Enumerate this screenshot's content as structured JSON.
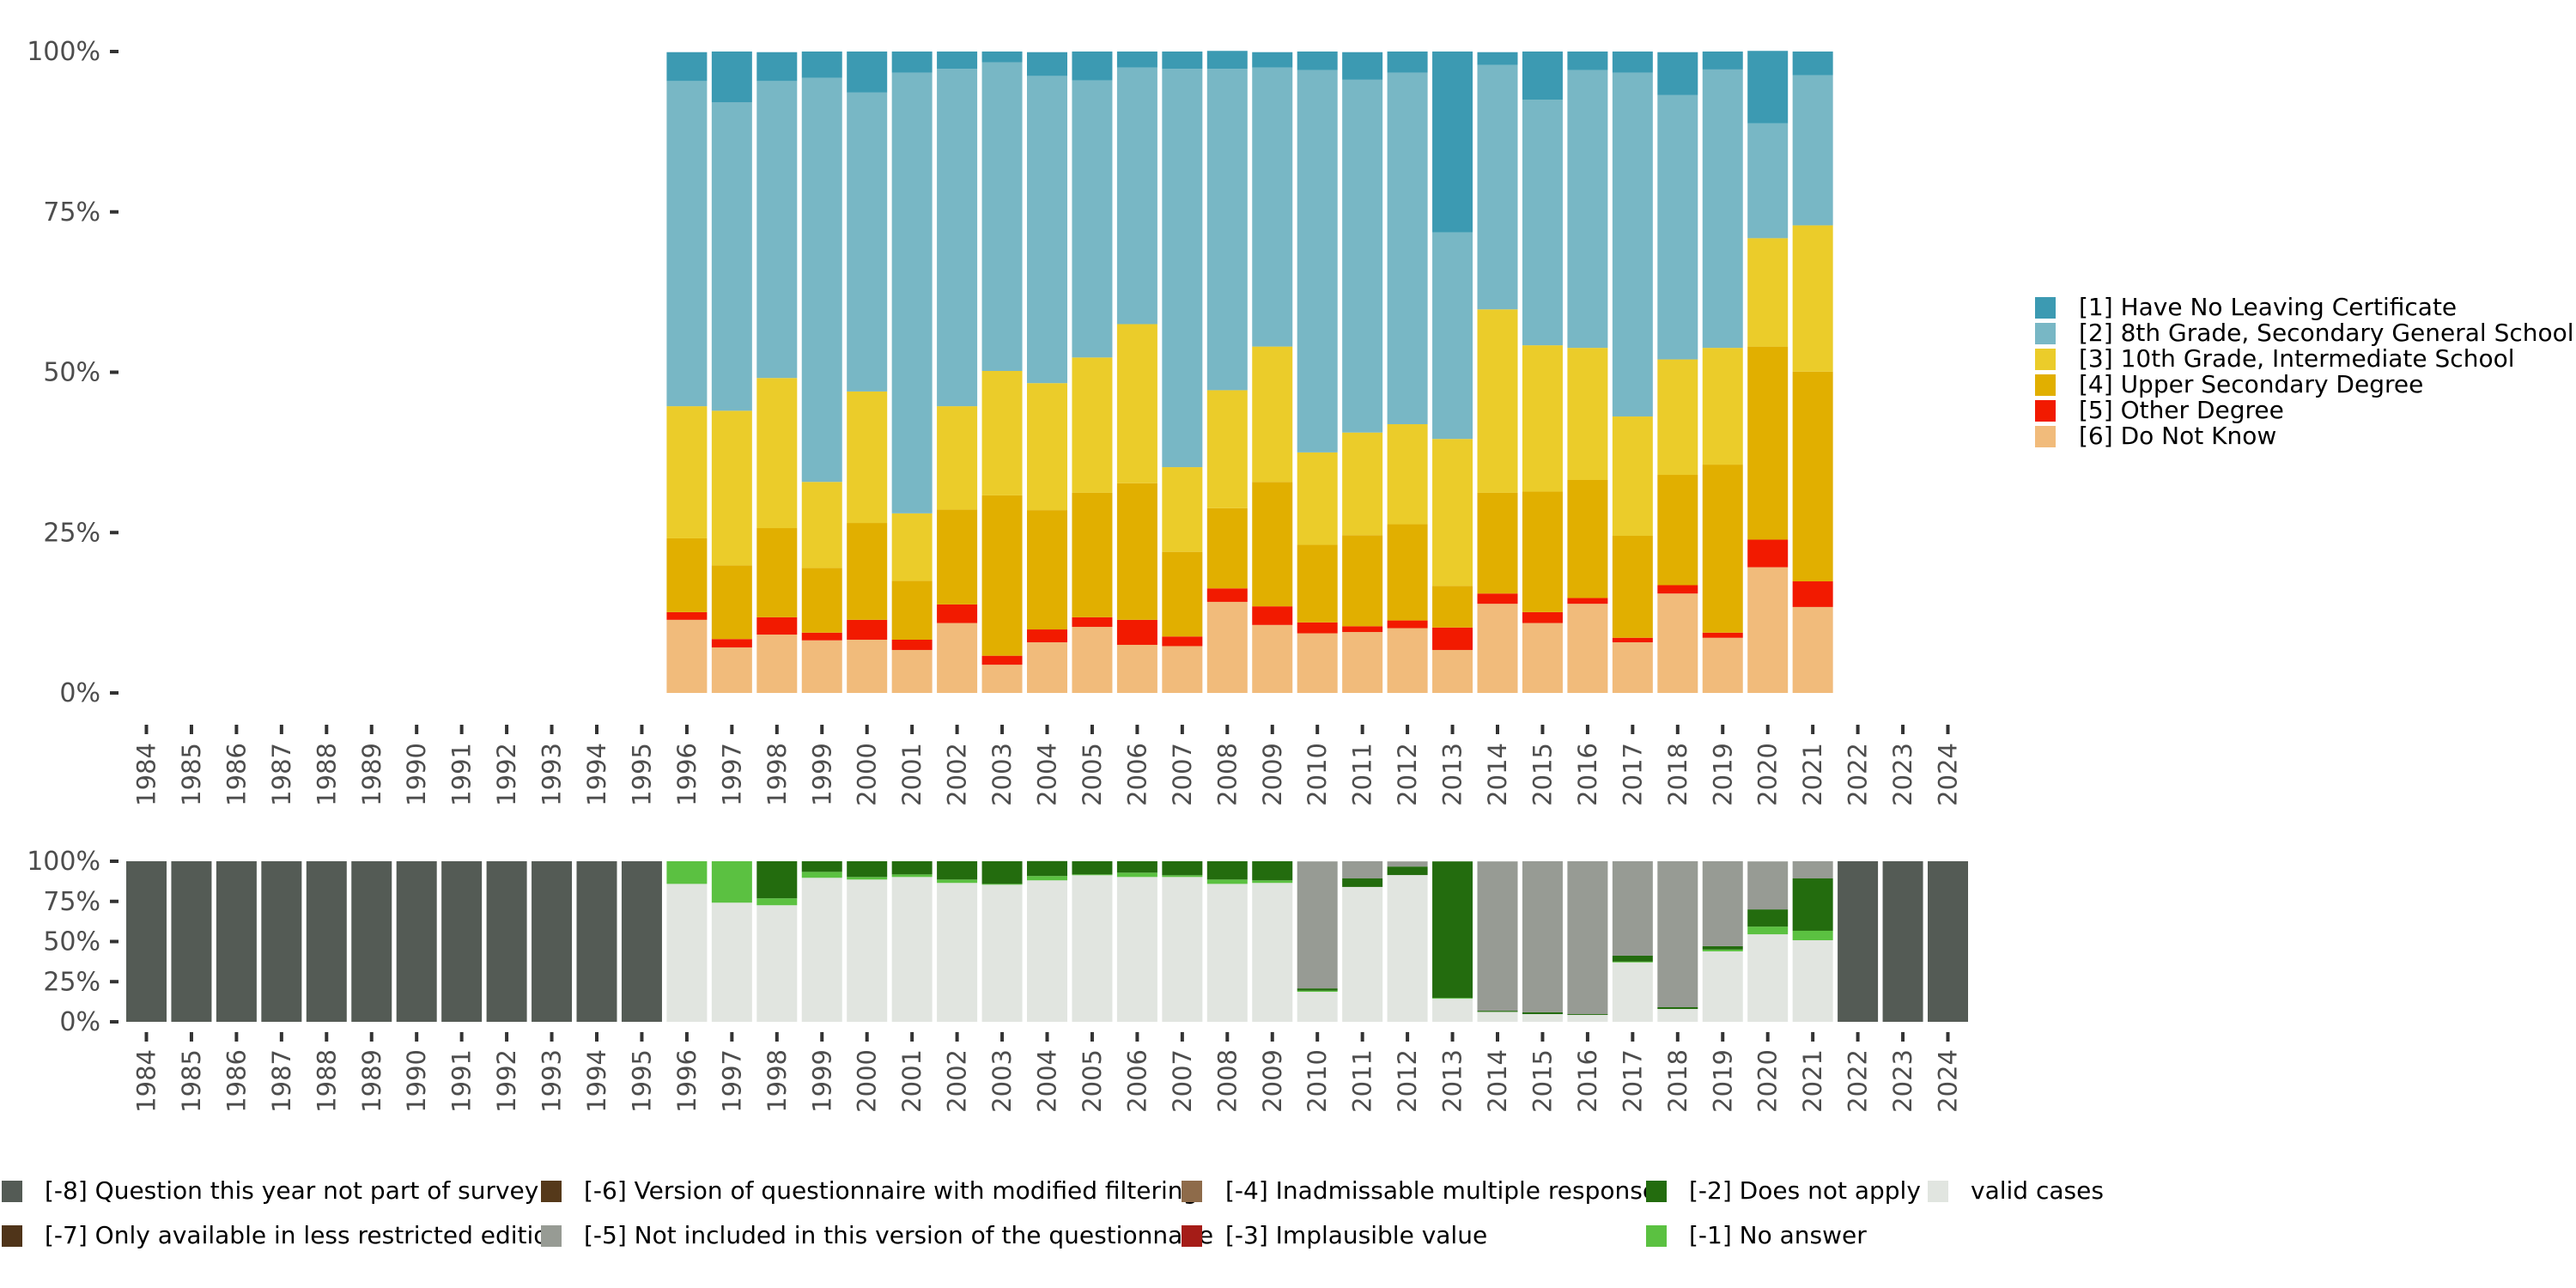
{
  "chart_data": [
    {
      "type": "bar",
      "stacked": true,
      "percent": true,
      "title": "",
      "xlabel": "",
      "ylabel": "",
      "ylim": [
        0,
        100
      ],
      "yticks": [
        "0%",
        "25%",
        "50%",
        "75%",
        "100%"
      ],
      "yticks_values": [
        0,
        25,
        50,
        75,
        100
      ],
      "categories": [
        "1984",
        "1985",
        "1986",
        "1987",
        "1988",
        "1989",
        "1990",
        "1991",
        "1992",
        "1993",
        "1994",
        "1995",
        "1996",
        "1997",
        "1998",
        "1999",
        "2000",
        "2001",
        "2002",
        "2003",
        "2004",
        "2005",
        "2006",
        "2007",
        "2008",
        "2009",
        "2010",
        "2011",
        "2012",
        "2013",
        "2014",
        "2015",
        "2016",
        "2017",
        "2018",
        "2019",
        "2020",
        "2021",
        "2022",
        "2023",
        "2024"
      ],
      "legend_position": "right",
      "grid": false,
      "series": [
        {
          "name": "[1] Have No Leaving Certificate",
          "color": "#3C9AB2",
          "values": [
            null,
            null,
            null,
            null,
            null,
            null,
            null,
            null,
            null,
            null,
            null,
            null,
            4.5,
            7.9,
            4.5,
            4.1,
            6.4,
            3.3,
            2.7,
            1.7,
            3.7,
            4.5,
            2.5,
            2.7,
            2.8,
            2.4,
            2.9,
            4.3,
            3.3,
            28.2,
            2.0,
            7.5,
            2.9,
            3.3,
            6.7,
            2.8,
            11.3,
            3.7,
            null,
            null,
            null
          ]
        },
        {
          "name": "[2] 8th Grade, Secondary General School",
          "color": "#78B7C5",
          "values": [
            null,
            null,
            null,
            null,
            null,
            null,
            null,
            null,
            null,
            null,
            null,
            null,
            50.7,
            48.1,
            46.3,
            63.0,
            46.6,
            68.7,
            52.6,
            48.1,
            47.9,
            43.2,
            40.0,
            62.1,
            50.1,
            43.5,
            59.6,
            55.0,
            54.8,
            32.2,
            38.1,
            38.3,
            43.3,
            53.6,
            41.2,
            43.4,
            17.9,
            23.4,
            null,
            null,
            null
          ]
        },
        {
          "name": "[3] 10th Grade, Intermediate School",
          "color": "#EBCC2A",
          "values": [
            null,
            null,
            null,
            null,
            null,
            null,
            null,
            null,
            null,
            null,
            null,
            null,
            20.6,
            24.1,
            23.4,
            13.4,
            20.5,
            10.5,
            16.1,
            19.4,
            19.8,
            21.1,
            24.8,
            13.2,
            18.4,
            21.1,
            14.4,
            16.0,
            15.6,
            22.9,
            28.6,
            22.8,
            20.6,
            18.6,
            18.0,
            18.2,
            16.9,
            22.8,
            null,
            null,
            null
          ]
        },
        {
          "name": "[4] Upper Secondary Degree",
          "color": "#E1AF00",
          "values": [
            null,
            null,
            null,
            null,
            null,
            null,
            null,
            null,
            null,
            null,
            null,
            null,
            11.5,
            11.5,
            13.9,
            10.1,
            15.1,
            9.2,
            14.8,
            25.0,
            18.6,
            19.4,
            21.3,
            13.2,
            12.5,
            19.4,
            12.1,
            14.2,
            15.0,
            6.5,
            15.7,
            18.8,
            18.4,
            15.9,
            17.2,
            26.2,
            30.1,
            32.7,
            null,
            null,
            null
          ]
        },
        {
          "name": "[5] Other Degree",
          "color": "#F21A00",
          "values": [
            null,
            null,
            null,
            null,
            null,
            null,
            null,
            null,
            null,
            null,
            null,
            null,
            1.2,
            1.3,
            2.7,
            1.2,
            3.1,
            1.6,
            2.9,
            1.4,
            2.0,
            1.5,
            3.9,
            1.5,
            2.1,
            2.9,
            1.7,
            0.9,
            1.2,
            3.5,
            1.6,
            1.7,
            0.9,
            0.7,
            1.3,
            0.8,
            4.3,
            4.0,
            null,
            null,
            null
          ]
        },
        {
          "name": "[6] Do Not Know",
          "color": "#F1BB7B",
          "values": [
            null,
            null,
            null,
            null,
            null,
            null,
            null,
            null,
            null,
            null,
            null,
            null,
            11.4,
            7.1,
            9.1,
            8.2,
            8.3,
            6.7,
            10.9,
            4.4,
            7.9,
            10.3,
            7.5,
            7.3,
            14.2,
            10.6,
            9.3,
            9.5,
            10.1,
            6.7,
            13.9,
            10.9,
            13.9,
            7.9,
            15.5,
            8.6,
            19.6,
            13.4,
            null,
            null,
            null
          ]
        }
      ]
    },
    {
      "type": "bar",
      "stacked": true,
      "percent": true,
      "title": "",
      "xlabel": "",
      "ylabel": "",
      "ylim": [
        0,
        100
      ],
      "yticks": [
        "0%",
        "25%",
        "50%",
        "75%",
        "100%"
      ],
      "yticks_values": [
        0,
        25,
        50,
        75,
        100
      ],
      "categories": [
        "1984",
        "1985",
        "1986",
        "1987",
        "1988",
        "1989",
        "1990",
        "1991",
        "1992",
        "1993",
        "1994",
        "1995",
        "1996",
        "1997",
        "1998",
        "1999",
        "2000",
        "2001",
        "2002",
        "2003",
        "2004",
        "2005",
        "2006",
        "2007",
        "2008",
        "2009",
        "2010",
        "2011",
        "2012",
        "2013",
        "2014",
        "2015",
        "2016",
        "2017",
        "2018",
        "2019",
        "2020",
        "2021",
        "2022",
        "2023",
        "2024"
      ],
      "legend_position": "bottom",
      "grid": false,
      "series": [
        {
          "name": "[-8] Question this year not part of survey",
          "color": "#545B55",
          "values": [
            100,
            100,
            100,
            100,
            100,
            100,
            100,
            100,
            100,
            100,
            100,
            100,
            0,
            0,
            0,
            0,
            0,
            0,
            0,
            0,
            0,
            0,
            0,
            0,
            0,
            0,
            0,
            0,
            0,
            0,
            0,
            0,
            0,
            0,
            0,
            0,
            0,
            0,
            100,
            100,
            100
          ]
        },
        {
          "name": "[-7] Only available in less restricted edition",
          "color": "#4F3419",
          "values": [
            0,
            0,
            0,
            0,
            0,
            0,
            0,
            0,
            0,
            0,
            0,
            0,
            0,
            0,
            0,
            0,
            0,
            0,
            0,
            0,
            0,
            0,
            0,
            0,
            0,
            0,
            0,
            0,
            0,
            0,
            0,
            0,
            0,
            0,
            0,
            0,
            0,
            0,
            0,
            0,
            0
          ]
        },
        {
          "name": "[-6] Version of questionnaire with modified filtering",
          "color": "#55391A",
          "values": [
            0,
            0,
            0,
            0,
            0,
            0,
            0,
            0,
            0,
            0,
            0,
            0,
            0,
            0,
            0,
            0,
            0,
            0,
            0,
            0,
            0,
            0,
            0,
            0,
            0,
            0,
            0,
            0,
            0,
            0,
            0,
            0,
            0,
            0,
            0,
            0,
            0,
            0,
            0,
            0,
            0
          ]
        },
        {
          "name": "[-5] Not included in this version of the questionnaire",
          "color": "#979B94",
          "values": [
            0,
            0,
            0,
            0,
            0,
            0,
            0,
            0,
            0,
            0,
            0,
            0,
            0,
            0,
            0,
            0,
            0,
            0,
            0,
            0,
            0,
            0,
            0,
            0,
            0,
            0,
            79.1,
            10.7,
            3.2,
            0,
            93.0,
            94.1,
            95.2,
            58.8,
            90.9,
            52.9,
            29.9,
            10.7,
            0,
            0,
            0
          ]
        },
        {
          "name": "[-4] Inadmissable multiple response",
          "color": "#8E6B4A",
          "values": [
            0,
            0,
            0,
            0,
            0,
            0,
            0,
            0,
            0,
            0,
            0,
            0,
            0,
            0,
            0,
            0,
            0,
            0,
            0,
            0,
            0,
            0,
            0,
            0,
            0,
            0,
            0,
            0,
            0,
            0,
            0,
            0,
            0,
            0,
            0,
            0,
            0,
            0,
            0,
            0,
            0
          ]
        },
        {
          "name": "[-3] Implausible value",
          "color": "#A51C17",
          "values": [
            0,
            0,
            0,
            0,
            0,
            0,
            0,
            0,
            0,
            0,
            0,
            0,
            0,
            0,
            0,
            0,
            0,
            0,
            0,
            0,
            0,
            0,
            0,
            0,
            0,
            0,
            0,
            0,
            0,
            0,
            0,
            0,
            0,
            0,
            0,
            0,
            0,
            0,
            0,
            0,
            0
          ]
        },
        {
          "name": "[-2] Does not apply",
          "color": "#236C0E",
          "values": [
            0,
            0,
            0,
            0,
            0,
            0,
            0,
            0,
            0,
            0,
            0,
            0,
            0,
            0,
            23.1,
            6.6,
            9.8,
            8.2,
            11.4,
            14.1,
            9.3,
            8.2,
            7.1,
            8.7,
            11.4,
            11.9,
            1.4,
            5.3,
            5.3,
            85.0,
            0.7,
            1.1,
            0.5,
            3.7,
            1.1,
            2.1,
            10.7,
            32.6,
            0,
            0,
            0
          ]
        },
        {
          "name": "[-1] No answer",
          "color": "#5BC141",
          "values": [
            0,
            0,
            0,
            0,
            0,
            0,
            0,
            0,
            0,
            0,
            0,
            0,
            14.1,
            25.8,
            4.3,
            3.7,
            1.6,
            1.6,
            2.1,
            0.5,
            2.7,
            0.5,
            2.7,
            1.1,
            2.7,
            1.6,
            0.7,
            0,
            0,
            0.5,
            0,
            0,
            0,
            0.5,
            0,
            1.1,
            4.8,
            5.9,
            0,
            0,
            0
          ]
        },
        {
          "name": "valid cases",
          "color": "#E1E5E0",
          "values": [
            0,
            0,
            0,
            0,
            0,
            0,
            0,
            0,
            0,
            0,
            0,
            0,
            85.9,
            74.2,
            72.6,
            89.7,
            88.6,
            90.2,
            86.5,
            85.4,
            88.1,
            91.3,
            90.2,
            90.2,
            85.9,
            86.5,
            18.7,
            84.0,
            91.4,
            14.4,
            6.2,
            4.8,
            4.3,
            37.0,
            8.0,
            43.9,
            54.5,
            50.8,
            0,
            0,
            0
          ]
        }
      ]
    }
  ]
}
